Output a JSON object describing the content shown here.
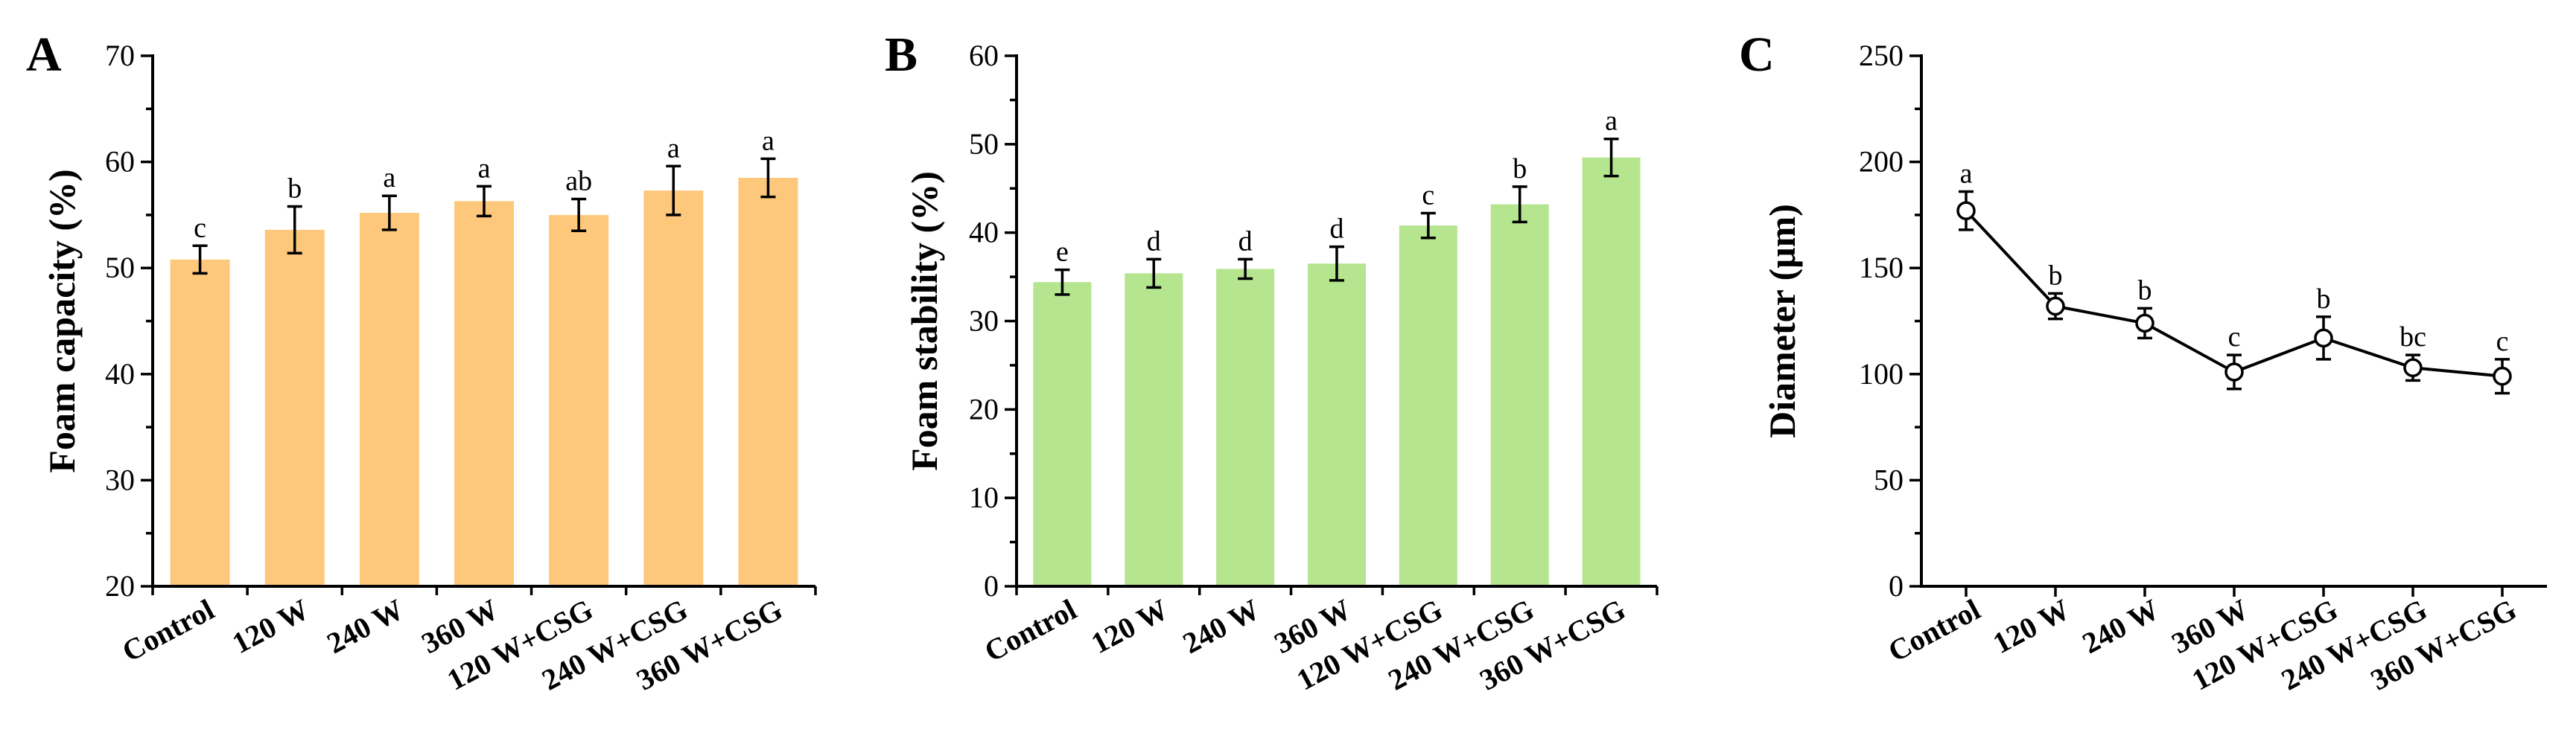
{
  "figure": {
    "categories": [
      "Control",
      "120 W",
      "240 W",
      "360 W",
      "120 W+CSG",
      "240 W+CSG",
      "360 W+CSG"
    ]
  },
  "chart_data": [
    {
      "panel": "A",
      "type": "bar",
      "categories": [
        "Control",
        "120 W",
        "240 W",
        "360 W",
        "120 W+CSG",
        "240 W+CSG",
        "360 W+CSG"
      ],
      "values": [
        50.8,
        53.6,
        55.2,
        56.3,
        55.0,
        57.3,
        58.5
      ],
      "errors": [
        1.3,
        2.2,
        1.6,
        1.4,
        1.5,
        2.3,
        1.8
      ],
      "significance": [
        "c",
        "b",
        "a",
        "a",
        "ab",
        "a",
        "a"
      ],
      "title": "",
      "xlabel": "",
      "ylabel": "Foam capacity (%)",
      "ylim": [
        20,
        70
      ],
      "yticks": [
        20,
        30,
        40,
        50,
        60,
        70
      ],
      "color": "#FEC87C",
      "grid": false
    },
    {
      "panel": "B",
      "type": "bar",
      "categories": [
        "Control",
        "120 W",
        "240 W",
        "360 W",
        "120 W+CSG",
        "240 W+CSG",
        "360 W+CSG"
      ],
      "values": [
        34.4,
        35.4,
        35.9,
        36.5,
        40.8,
        43.2,
        48.5
      ],
      "errors": [
        1.4,
        1.6,
        1.1,
        1.9,
        1.4,
        2.0,
        2.1
      ],
      "significance": [
        "e",
        "d",
        "d",
        "d",
        "c",
        "b",
        "a"
      ],
      "title": "",
      "xlabel": "",
      "ylabel": "Foam stability (%)",
      "ylim": [
        0,
        60
      ],
      "yticks": [
        0,
        10,
        20,
        30,
        40,
        50,
        60
      ],
      "color": "#B5E58E",
      "grid": false
    },
    {
      "panel": "C",
      "type": "line",
      "categories": [
        "Control",
        "120 W",
        "240 W",
        "360 W",
        "120 W+CSG",
        "240 W+CSG",
        "360 W+CSG"
      ],
      "values": [
        177,
        132,
        124,
        101,
        117,
        103,
        99
      ],
      "errors": [
        9,
        6,
        7,
        8,
        10,
        6,
        8
      ],
      "significance": [
        "a",
        "b",
        "b",
        "c",
        "b",
        "bc",
        "c"
      ],
      "title": "",
      "xlabel": "",
      "ylabel": "Diameter (μm)",
      "ylim": [
        0,
        250
      ],
      "yticks": [
        0,
        50,
        100,
        150,
        200,
        250
      ],
      "color": "#000000",
      "marker": "open-circle",
      "grid": false
    }
  ]
}
